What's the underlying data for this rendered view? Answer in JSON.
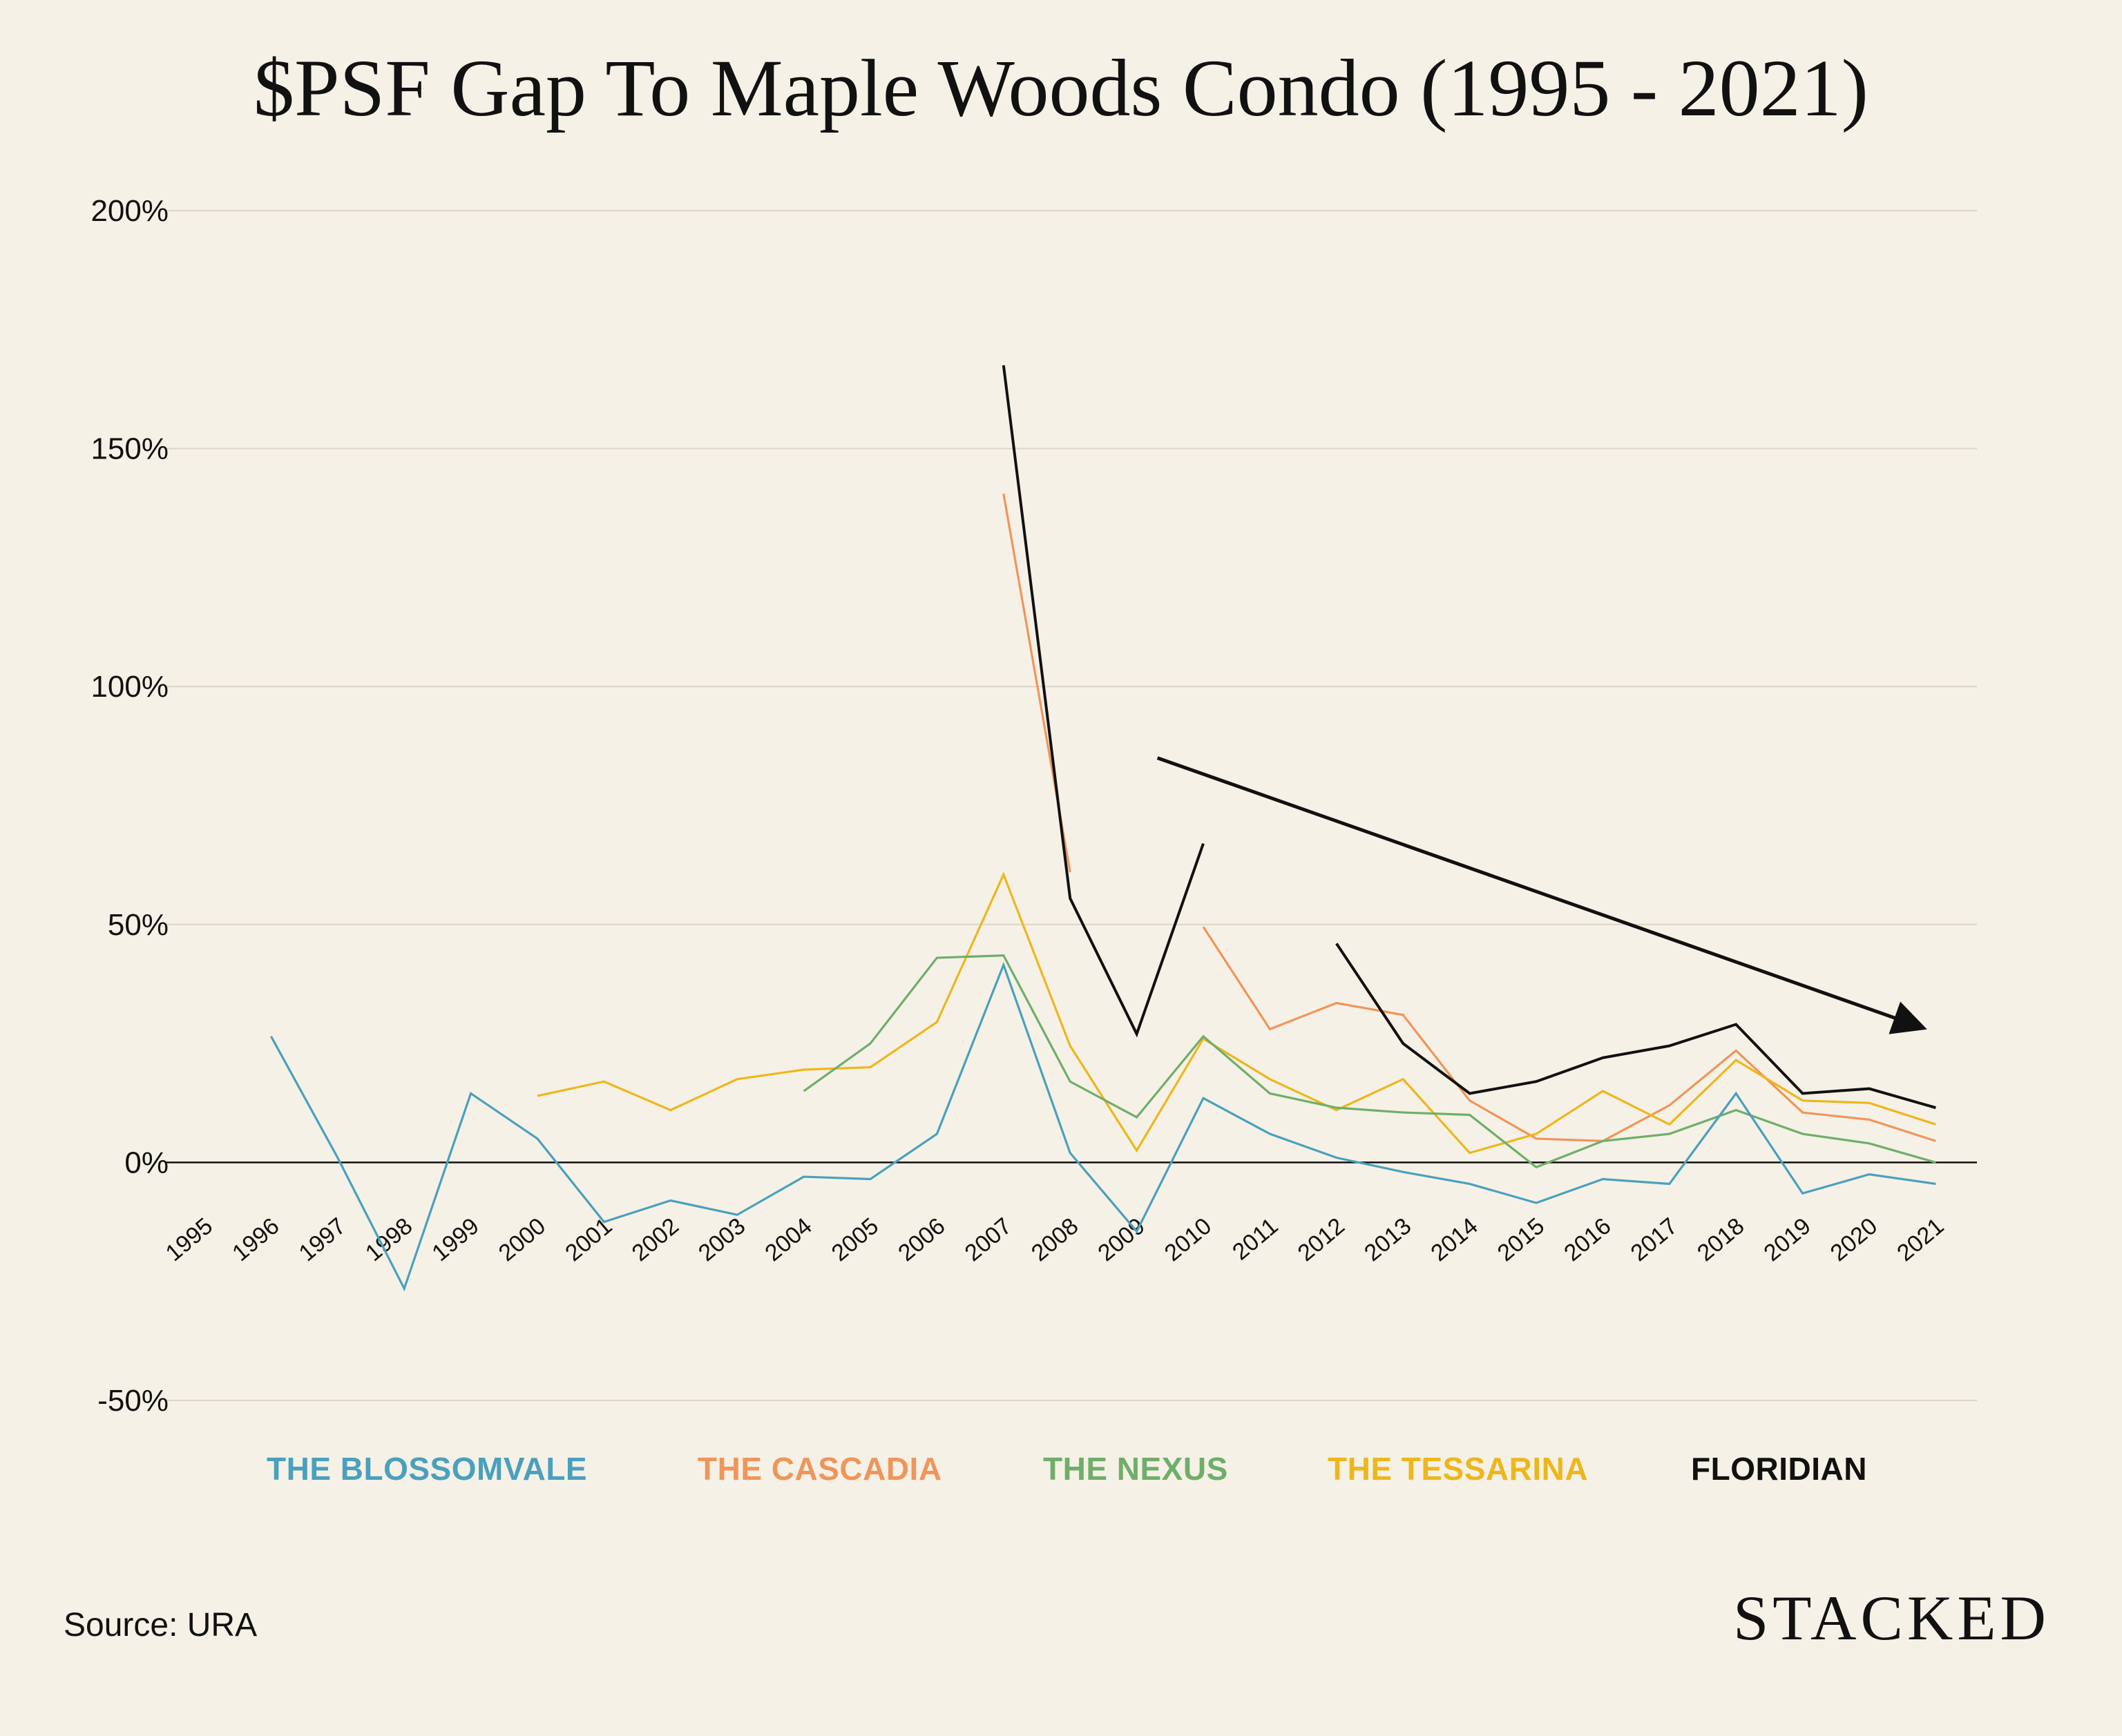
{
  "chart_data": {
    "type": "line",
    "title": "$PSF Gap To Maple Woods Condo (1995 - 2021)",
    "xlabel": "",
    "ylabel": "",
    "ylim": [
      -50,
      200
    ],
    "yticks": [
      -50,
      0,
      50,
      100,
      150,
      200
    ],
    "ytick_labels": [
      "-50%",
      "0%",
      "50%",
      "100%",
      "150%",
      "200%"
    ],
    "x": [
      "1995",
      "1996",
      "1997",
      "1998",
      "1999",
      "2000",
      "2001",
      "2002",
      "2003",
      "2004",
      "2005",
      "2006",
      "2007",
      "2008",
      "2009",
      "2010",
      "2011",
      "2012",
      "2013",
      "2014",
      "2015",
      "2016",
      "2017",
      "2018",
      "2019",
      "2020",
      "2021"
    ],
    "grid": true,
    "legend_position": "bottom",
    "series": [
      {
        "name": "THE BLOSSOMVALE",
        "color": "#4aa0bd",
        "values": [
          null,
          26.5,
          1,
          -26.5,
          14.5,
          5,
          -12.5,
          -8,
          -11,
          -3,
          -3.5,
          6,
          41.5,
          2,
          -14.5,
          13.5,
          6,
          1,
          -2,
          -4.5,
          -8.5,
          -3.5,
          -4.5,
          14.5,
          -6.5,
          -2.5,
          -4.5
        ]
      },
      {
        "name": "THE CASCADIA",
        "color": "#f0955a",
        "values": [
          null,
          null,
          null,
          null,
          null,
          null,
          null,
          null,
          null,
          null,
          null,
          null,
          140.5,
          61,
          null,
          49.5,
          28,
          33.5,
          31,
          13,
          5,
          4.5,
          12,
          23.5,
          10.5,
          9,
          4.5
        ]
      },
      {
        "name": "THE NEXUS",
        "color": "#6fae6a",
        "values": [
          null,
          null,
          null,
          null,
          null,
          null,
          null,
          null,
          null,
          15,
          25,
          43,
          43.5,
          17,
          9.5,
          26.5,
          14.5,
          11.5,
          10.5,
          10,
          -1,
          4.5,
          6,
          11,
          6,
          4,
          0
        ]
      },
      {
        "name": "THE TESSARINA",
        "color": "#edb71c",
        "values": [
          null,
          null,
          null,
          null,
          null,
          14,
          17,
          11,
          17.5,
          19.5,
          20,
          29.5,
          60.5,
          24.5,
          2.5,
          26,
          17.5,
          11,
          17.5,
          2,
          6,
          15,
          8,
          21.5,
          13,
          12.5,
          8
        ]
      },
      {
        "name": "FLORIDIAN",
        "color": "#111111",
        "values": [
          null,
          null,
          null,
          null,
          null,
          null,
          null,
          null,
          null,
          null,
          null,
          null,
          167.5,
          55.5,
          27,
          67,
          null,
          46,
          25,
          14.5,
          17,
          22,
          24.5,
          29,
          14.5,
          15.5,
          11.5
        ]
      }
    ],
    "annotations": [
      {
        "type": "arrow",
        "from": {
          "x": "2009",
          "y": 85
        },
        "to": {
          "x": "2021",
          "y": 27
        },
        "color": "#111111"
      }
    ]
  },
  "footer": {
    "source": "Source: URA",
    "brand": "STACKED"
  }
}
